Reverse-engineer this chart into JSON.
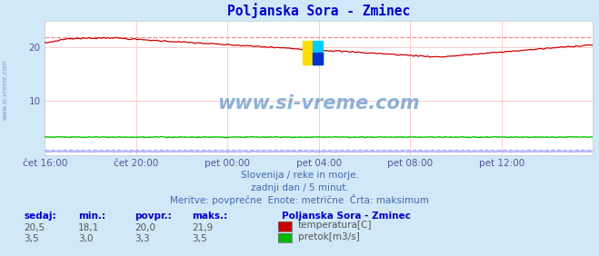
{
  "title": "Poljanska Sora - Zminec",
  "bg_color": "#d0e8f8",
  "plot_bg_color": "#ffffff",
  "grid_color": "#ffcccc",
  "x_labels": [
    "čet 16:00",
    "čet 20:00",
    "pet 00:00",
    "pet 04:00",
    "pet 08:00",
    "pet 12:00"
  ],
  "x_ticks_pos": [
    0,
    48,
    96,
    144,
    192,
    240
  ],
  "total_points": 289,
  "temp_max_line": 21.9,
  "flow_max": 3.5,
  "ylim_min": 0,
  "ylim_max": 25.0,
  "yticks": [
    10,
    20
  ],
  "temp_color": "#cc0000",
  "flow_color": "#00bb00",
  "height_color": "#8888ff",
  "max_line_color": "#ff8888",
  "max_flow_line_color": "#88ff88",
  "max_height_line_color": "#aaaaff",
  "watermark": "www.si-vreme.com",
  "watermark_color": "#6699cc",
  "subtitle1": "Slovenija / reke in morje.",
  "subtitle2": "zadnji dan / 5 minut.",
  "subtitle3": "Meritve: povprečne  Enote: metrične  Črta: maksimum",
  "legend_title": "Poljanska Sora - Zminec",
  "legend_items": [
    {
      "label": "temperatura[C]",
      "color": "#cc0000"
    },
    {
      "label": "pretok[m3/s]",
      "color": "#00bb00"
    }
  ],
  "table_headers": [
    "sedaj:",
    "min.:",
    "povpr.:",
    "maks.:"
  ],
  "table_rows": [
    [
      "20,5",
      "18,1",
      "20,0",
      "21,9"
    ],
    [
      "3,5",
      "3,0",
      "3,3",
      "3,5"
    ]
  ],
  "ylabel_text": "www.si-vreme.com",
  "title_color": "#0000cc",
  "subtitle_color": "#4466aa",
  "table_header_color": "#0000cc",
  "table_value_color": "#555555",
  "logo_yellow": "#ffdd00",
  "logo_cyan": "#00ccff",
  "logo_blue": "#0033cc",
  "logo_green": "#00cc44"
}
